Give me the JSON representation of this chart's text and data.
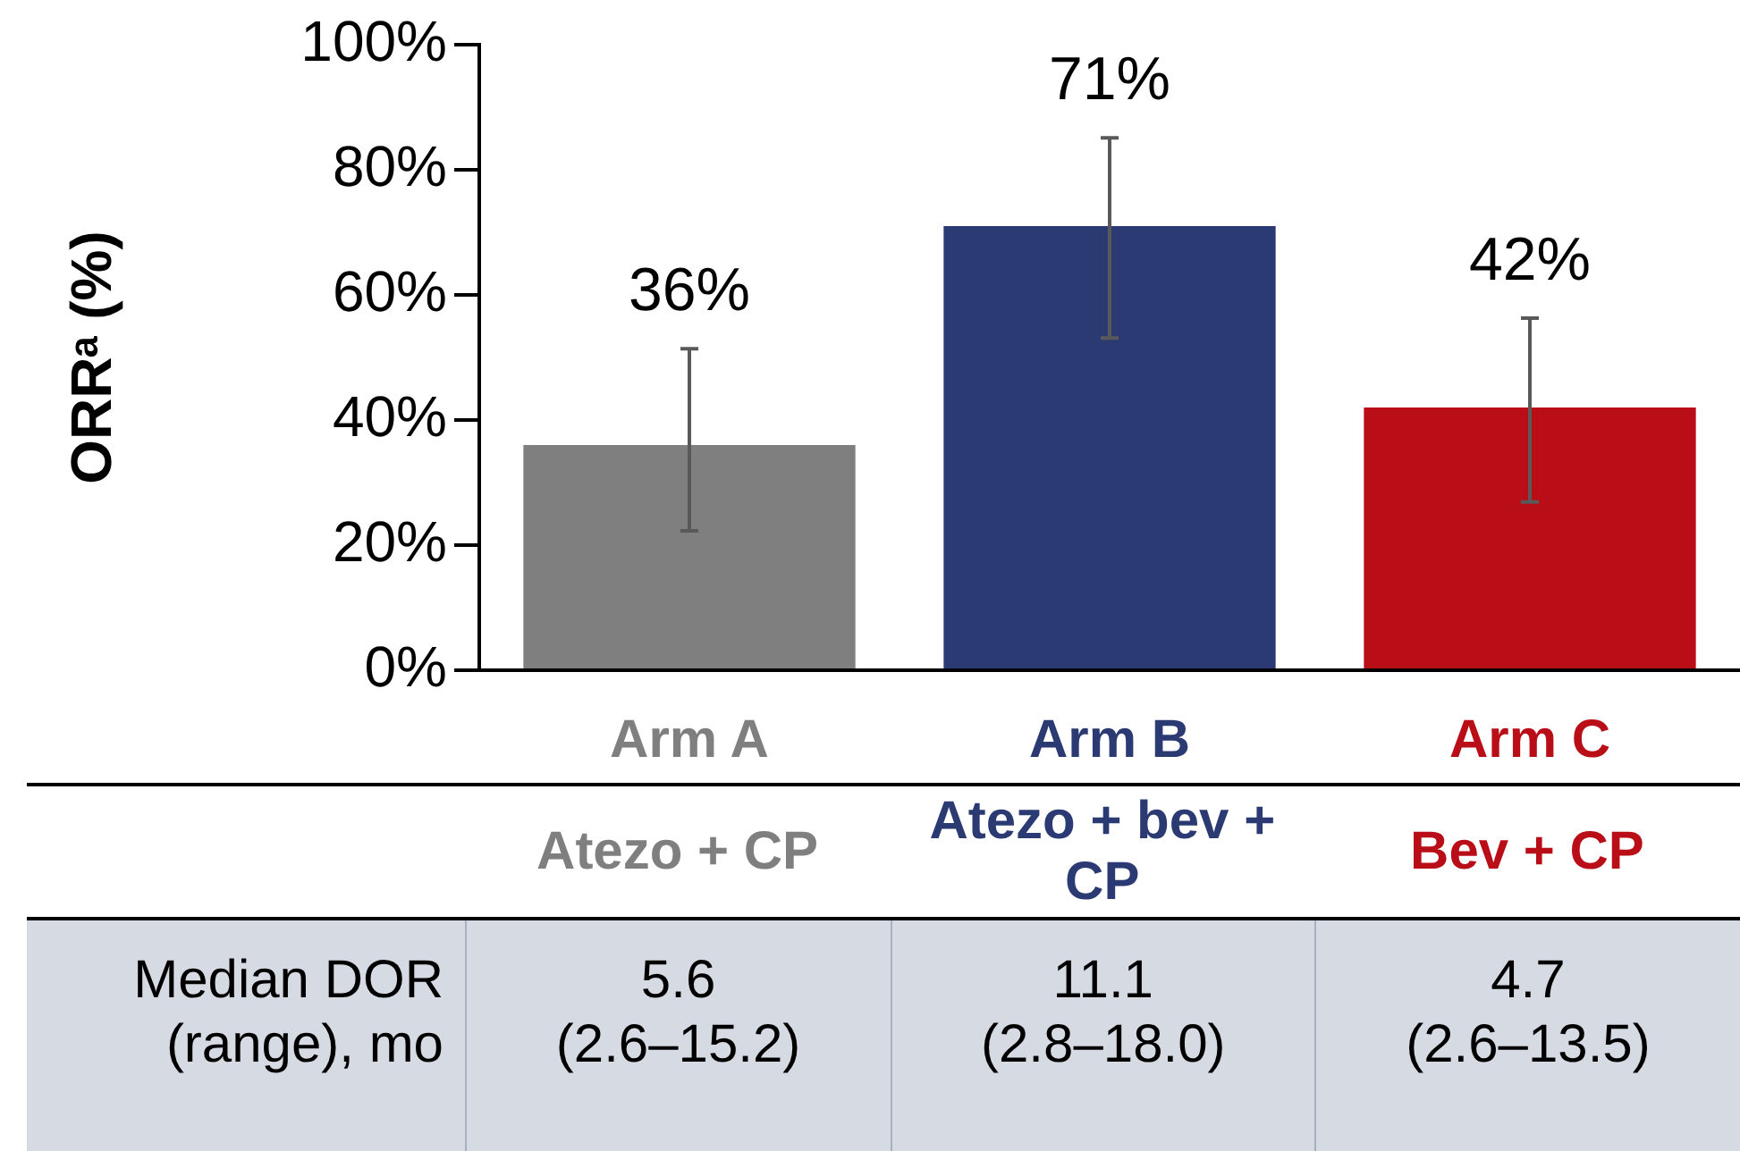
{
  "chart_data": {
    "type": "bar",
    "ylabel": "ORRᵃ (%)",
    "categories": [
      "Arm A",
      "Arm B",
      "Arm C"
    ],
    "values": [
      36,
      71,
      42
    ],
    "colors": [
      "#7f7f7f",
      "#2b3a73",
      "#b90e17"
    ],
    "errors": [
      [
        22.3,
        51.4
      ],
      [
        53.1,
        85.1
      ],
      [
        26.9,
        56.3
      ]
    ],
    "value_labels": [
      "36%",
      "71%",
      "42%"
    ],
    "ylim": [
      0,
      100
    ],
    "yticks": [
      {
        "value": 0,
        "label": "0%"
      },
      {
        "value": 20,
        "label": "20%"
      },
      {
        "value": 40,
        "label": "40%"
      },
      {
        "value": 60,
        "label": "60%"
      },
      {
        "value": 80,
        "label": "80%"
      },
      {
        "value": 100,
        "label": "100%"
      }
    ],
    "annotations": [
      "Atezo + CP",
      "Atezo + bev + CP",
      "Bev + CP",
      "Median DOR\n(range), mo",
      "5.6\n(2.6–15.2)",
      "11.1\n(2.8–18.0)",
      "4.7\n(2.6–13.5)"
    ]
  }
}
